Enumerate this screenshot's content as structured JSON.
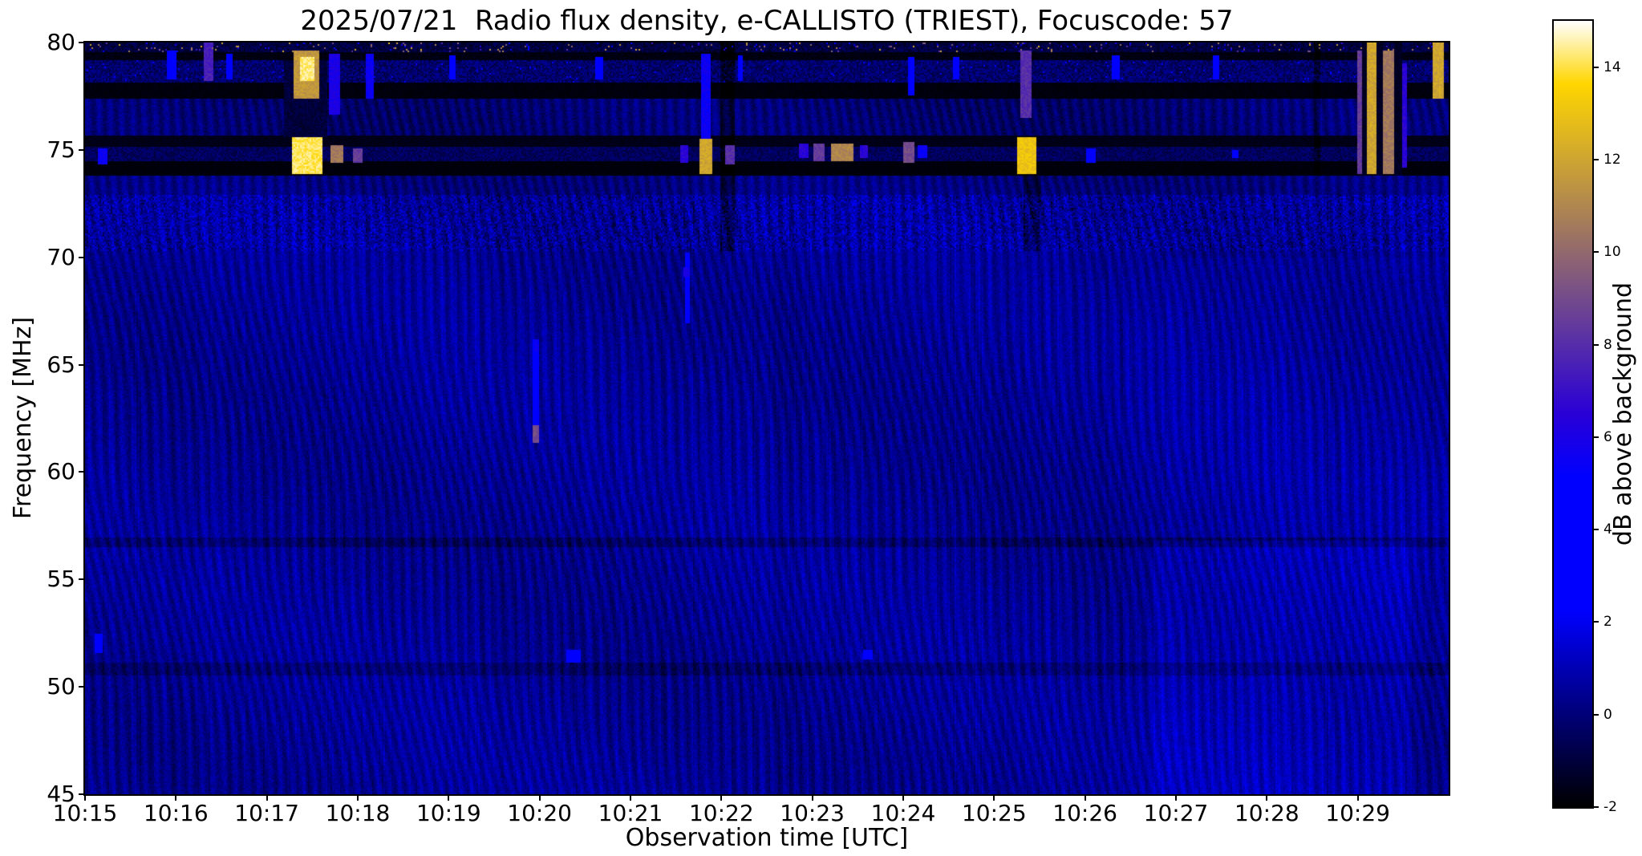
{
  "chart_data": {
    "type": "heatmap",
    "title": "2025/07/21  Radio flux density, e-CALLISTO (TRIEST), Focuscode: 57",
    "xlabel": "Observation time [UTC]",
    "ylabel": "Frequency [MHz]",
    "colorbar_label": "dB above background",
    "x_tick_labels": [
      "10:15",
      "10:16",
      "10:17",
      "10:18",
      "10:19",
      "10:20",
      "10:21",
      "10:22",
      "10:23",
      "10:24",
      "10:25",
      "10:26",
      "10:27",
      "10:28",
      "10:29"
    ],
    "x_range_minutes": [
      0,
      15
    ],
    "y_tick_values": [
      45,
      50,
      55,
      60,
      65,
      70,
      75,
      80
    ],
    "ylim": [
      45,
      80
    ],
    "clim": [
      -2,
      15
    ],
    "colorbar_tick_values": [
      -2,
      0,
      2,
      4,
      6,
      8,
      10,
      12,
      14
    ],
    "colormap": {
      "name": "gnuplot2",
      "stops": [
        {
          "pos": 0.0,
          "rgb": [
            0,
            0,
            0
          ]
        },
        {
          "pos": 0.25,
          "rgb": [
            0,
            0,
            255
          ]
        },
        {
          "pos": 0.42,
          "rgb": [
            0,
            0,
            255
          ]
        },
        {
          "pos": 0.5,
          "rgb": [
            41,
            0,
            214
          ]
        },
        {
          "pos": 0.92,
          "rgb": [
            255,
            214,
            0
          ]
        },
        {
          "pos": 1.0,
          "rgb": [
            255,
            255,
            255
          ]
        }
      ]
    },
    "background_model": {
      "base_db": 0.45,
      "noise_db": 0.38,
      "wave_amp_db": 0.5,
      "wave2_amp_db": 0.22,
      "column_noise_db": 0.3,
      "seed": 1337
    },
    "bands": [
      {
        "f0": 79.55,
        "f1": 80.0,
        "set": -1.5,
        "speckle": 1.2,
        "bright_speckle_prob": 0.05,
        "bright_speckle_db": [
          4,
          13
        ]
      },
      {
        "f0": 79.15,
        "f1": 79.55,
        "set": -1.85,
        "speckle": 0.3
      },
      {
        "f0": 78.15,
        "f1": 79.15,
        "set": -1.0,
        "speckle": 1.6,
        "bright_speckle_prob": 0.01,
        "bright_speckle_db": [
          2,
          6
        ]
      },
      {
        "f0": 77.35,
        "f1": 78.15,
        "set": -1.9,
        "speckle": 0.25
      },
      {
        "f0": 75.65,
        "f1": 77.35,
        "offset": -0.55
      },
      {
        "f0": 75.15,
        "f1": 75.65,
        "set": -1.75,
        "speckle": 0.3
      },
      {
        "f0": 74.45,
        "f1": 75.15,
        "set": -1.0,
        "speckle": 1.1
      },
      {
        "f0": 73.8,
        "f1": 74.45,
        "set": -1.9,
        "speckle": 0.2
      },
      {
        "f0": 72.9,
        "f1": 73.8,
        "offset": -0.35
      },
      {
        "f0": 70.3,
        "f1": 72.9,
        "offset": 0.15,
        "speckle": 0.9
      },
      {
        "f0": 56.55,
        "f1": 56.95,
        "offset": -0.75
      },
      {
        "f0": 50.55,
        "f1": 51.15,
        "offset": -0.65
      },
      {
        "f0": 45.0,
        "f1": 56.8,
        "t0": 11.75,
        "t1": 14.6,
        "offset": 0.55
      },
      {
        "f0": 57.0,
        "f1": 70.0,
        "t0": 11.9,
        "t1": 15.0,
        "offset": 0.2
      }
    ],
    "dark_columns": [
      {
        "t0": 2.18,
        "t1": 2.66,
        "f0": 75.6,
        "f1": 79.15,
        "set": -1.4,
        "speckle": 0.8
      },
      {
        "t0": 6.98,
        "t1": 7.14,
        "f0": 70.3,
        "f1": 80.0,
        "offset": -1.1
      },
      {
        "t0": 10.32,
        "t1": 10.52,
        "f0": 70.3,
        "f1": 73.8,
        "offset": -0.9
      },
      {
        "t0": 13.52,
        "t1": 13.58,
        "f0": 73.8,
        "f1": 80.0,
        "offset": -0.8
      },
      {
        "t0": 14.04,
        "t1": 14.1,
        "f0": 73.8,
        "f1": 80.0,
        "set": -1.6,
        "speckle": 0.4
      },
      {
        "t0": 14.2,
        "t1": 14.27,
        "f0": 73.8,
        "f1": 80.0,
        "set": -1.6,
        "speckle": 0.4
      },
      {
        "t0": 14.4,
        "t1": 14.48,
        "f0": 73.8,
        "f1": 80.0,
        "set": -1.6,
        "speckle": 0.4
      }
    ],
    "features": [
      {
        "t0": 0.14,
        "t1": 0.24,
        "f0": 74.3,
        "f1": 75.1,
        "db": 6
      },
      {
        "t0": 0.1,
        "t1": 0.2,
        "f0": 51.6,
        "f1": 52.5,
        "db": 3.2
      },
      {
        "t0": 0.9,
        "t1": 1.0,
        "f0": 78.3,
        "f1": 79.6,
        "db": 5
      },
      {
        "t0": 1.3,
        "t1": 1.42,
        "f0": 78.2,
        "f1": 80.0,
        "db": 8
      },
      {
        "t0": 1.55,
        "t1": 1.62,
        "f0": 78.3,
        "f1": 79.5,
        "db": 4.5
      },
      {
        "t0": 2.28,
        "t1": 2.62,
        "f0": 73.9,
        "f1": 75.6,
        "db": 14.6
      },
      {
        "t0": 2.3,
        "t1": 2.58,
        "f0": 77.4,
        "f1": 79.6,
        "db": 12
      },
      {
        "t0": 2.36,
        "t1": 2.52,
        "f0": 78.2,
        "f1": 79.3,
        "db": 14.8
      },
      {
        "t0": 2.7,
        "t1": 2.84,
        "f0": 74.4,
        "f1": 75.2,
        "db": 11
      },
      {
        "t0": 2.95,
        "t1": 3.06,
        "f0": 74.4,
        "f1": 75.1,
        "db": 9
      },
      {
        "t0": 2.68,
        "t1": 2.8,
        "f0": 76.6,
        "f1": 79.5,
        "db": 6.5
      },
      {
        "t0": 3.08,
        "t1": 3.18,
        "f0": 77.4,
        "f1": 79.5,
        "db": 6
      },
      {
        "t0": 4.0,
        "t1": 4.08,
        "f0": 78.3,
        "f1": 79.4,
        "db": 5
      },
      {
        "t0": 4.93,
        "t1": 4.99,
        "f0": 62.2,
        "f1": 66.2,
        "db": 4.2
      },
      {
        "t0": 4.93,
        "t1": 5.0,
        "f0": 61.4,
        "f1": 62.2,
        "db": 9.5
      },
      {
        "t0": 4.94,
        "t1": 4.99,
        "f0": 65.6,
        "f1": 66.2,
        "db": 6
      },
      {
        "t0": 5.3,
        "t1": 5.45,
        "f0": 51.15,
        "f1": 51.7,
        "db": 3.4
      },
      {
        "t0": 5.62,
        "t1": 5.7,
        "f0": 78.3,
        "f1": 79.3,
        "db": 4.5
      },
      {
        "t0": 6.55,
        "t1": 6.64,
        "f0": 74.4,
        "f1": 75.2,
        "db": 7
      },
      {
        "t0": 6.6,
        "t1": 6.65,
        "f0": 66.9,
        "f1": 70.2,
        "db": 3.2
      },
      {
        "t0": 6.59,
        "t1": 6.66,
        "f0": 69.1,
        "f1": 69.5,
        "db": 6.5
      },
      {
        "t0": 6.76,
        "t1": 6.9,
        "f0": 73.9,
        "f1": 75.5,
        "db": 12.5
      },
      {
        "t0": 6.78,
        "t1": 6.88,
        "f0": 75.5,
        "f1": 79.5,
        "db": 6
      },
      {
        "t0": 7.05,
        "t1": 7.14,
        "f0": 74.3,
        "f1": 75.2,
        "db": 8.5
      },
      {
        "t0": 7.18,
        "t1": 7.24,
        "f0": 78.2,
        "f1": 79.4,
        "db": 5
      },
      {
        "t0": 7.85,
        "t1": 7.95,
        "f0": 74.6,
        "f1": 75.3,
        "db": 7
      },
      {
        "t0": 8.02,
        "t1": 8.14,
        "f0": 74.5,
        "f1": 75.3,
        "db": 9
      },
      {
        "t0": 8.2,
        "t1": 8.46,
        "f0": 74.5,
        "f1": 75.3,
        "db": 11.5
      },
      {
        "t0": 8.52,
        "t1": 8.62,
        "f0": 74.6,
        "f1": 75.2,
        "db": 7
      },
      {
        "t0": 8.56,
        "t1": 8.66,
        "f0": 51.3,
        "f1": 51.75,
        "db": 3.2
      },
      {
        "t0": 9.0,
        "t1": 9.12,
        "f0": 74.4,
        "f1": 75.4,
        "db": 9.5
      },
      {
        "t0": 9.16,
        "t1": 9.26,
        "f0": 74.6,
        "f1": 75.2,
        "db": 6
      },
      {
        "t0": 9.05,
        "t1": 9.12,
        "f0": 77.5,
        "f1": 79.3,
        "db": 5
      },
      {
        "t0": 9.55,
        "t1": 9.62,
        "f0": 78.3,
        "f1": 79.3,
        "db": 5
      },
      {
        "t0": 10.26,
        "t1": 10.46,
        "f0": 73.9,
        "f1": 75.6,
        "db": 13.5
      },
      {
        "t0": 10.28,
        "t1": 10.42,
        "f0": 76.5,
        "f1": 79.6,
        "db": 8.5
      },
      {
        "t0": 11.02,
        "t1": 11.12,
        "f0": 74.4,
        "f1": 75.1,
        "db": 5.5
      },
      {
        "t0": 11.3,
        "t1": 11.38,
        "f0": 78.3,
        "f1": 79.4,
        "db": 4.5
      },
      {
        "t0": 12.4,
        "t1": 12.48,
        "f0": 78.3,
        "f1": 79.4,
        "db": 4
      },
      {
        "t0": 12.62,
        "t1": 12.68,
        "f0": 74.6,
        "f1": 75.0,
        "db": 5
      },
      {
        "t0": 14.0,
        "t1": 14.04,
        "f0": 73.9,
        "f1": 79.6,
        "db": 9
      },
      {
        "t0": 14.1,
        "t1": 14.2,
        "f0": 73.9,
        "f1": 80.0,
        "db": 12.5
      },
      {
        "t0": 14.28,
        "t1": 14.4,
        "f0": 73.9,
        "f1": 79.6,
        "db": 11
      },
      {
        "t0": 14.48,
        "t1": 14.54,
        "f0": 74.2,
        "f1": 79.0,
        "db": 7
      },
      {
        "t0": 14.82,
        "t1": 14.94,
        "f0": 77.4,
        "f1": 80.0,
        "db": 12.5
      }
    ]
  }
}
